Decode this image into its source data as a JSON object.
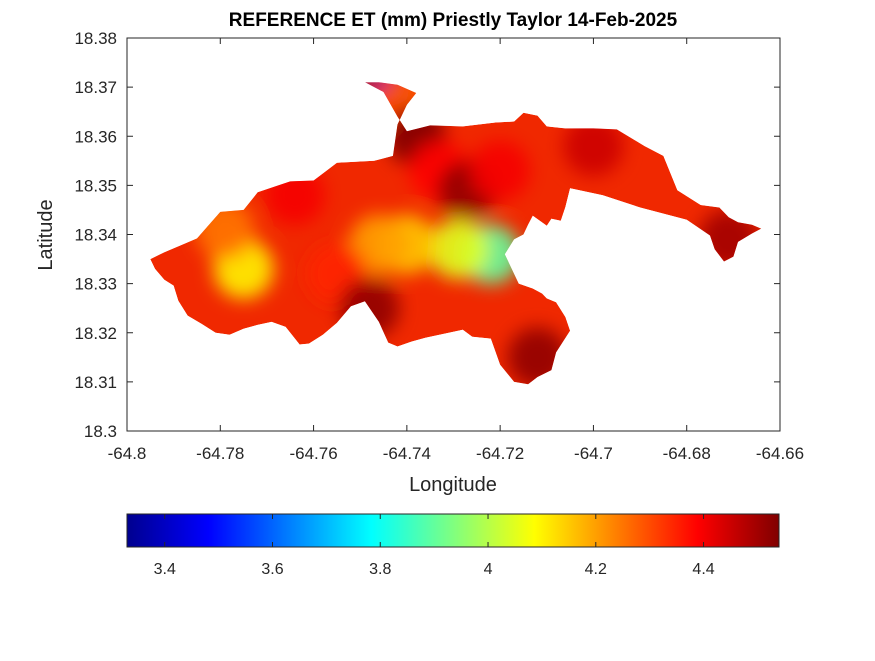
{
  "chart_data": {
    "type": "heatmap",
    "title": "REFERENCE ET (mm) Priestly Taylor 14-Feb-2025",
    "xlabel": "Longitude",
    "ylabel": "Latitude",
    "xlim": [
      -64.8,
      -64.66
    ],
    "ylim": [
      18.3,
      18.38
    ],
    "x_ticks": [
      -64.8,
      -64.78,
      -64.76,
      -64.74,
      -64.72,
      -64.7,
      -64.68,
      -64.66
    ],
    "x_tick_labels": [
      "-64.8",
      "-64.78",
      "-64.76",
      "-64.74",
      "-64.72",
      "-64.7",
      "-64.68",
      "-64.66"
    ],
    "y_ticks": [
      18.3,
      18.31,
      18.32,
      18.33,
      18.34,
      18.35,
      18.36,
      18.37,
      18.38
    ],
    "y_tick_labels": [
      "18.3",
      "18.31",
      "18.32",
      "18.33",
      "18.34",
      "18.35",
      "18.36",
      "18.37",
      "18.38"
    ],
    "grid": false,
    "colormap": "jet",
    "colorbar": {
      "orientation": "horizontal",
      "placement": "bottom",
      "clim": [
        3.33,
        4.54
      ],
      "ticks": [
        3.4,
        3.6,
        3.8,
        4.0,
        4.2,
        4.4
      ],
      "tick_labels": [
        "3.4",
        "3.6",
        "3.8",
        "4",
        "4.2",
        "4.4"
      ]
    },
    "region_outline": [
      [
        -64.792,
        18.3364
      ],
      [
        -64.785,
        18.3392
      ],
      [
        -64.78,
        18.3446
      ],
      [
        -64.775,
        18.345
      ],
      [
        -64.772,
        18.3486
      ],
      [
        -64.765,
        18.3508
      ],
      [
        -64.76,
        18.351
      ],
      [
        -64.755,
        18.3546
      ],
      [
        -64.747,
        18.355
      ],
      [
        -64.743,
        18.356
      ],
      [
        -64.742,
        18.3624
      ],
      [
        -64.74,
        18.3664
      ],
      [
        -64.738,
        18.3688
      ],
      [
        -64.742,
        18.3705
      ],
      [
        -64.746,
        18.371
      ],
      [
        -64.749,
        18.371
      ],
      [
        -64.745,
        18.369
      ],
      [
        -64.742,
        18.364
      ],
      [
        -64.74,
        18.361
      ],
      [
        -64.735,
        18.3622
      ],
      [
        -64.728,
        18.362
      ],
      [
        -64.721,
        18.3628
      ],
      [
        -64.717,
        18.363
      ],
      [
        -64.715,
        18.3648
      ],
      [
        -64.712,
        18.3642
      ],
      [
        -64.71,
        18.362
      ],
      [
        -64.706,
        18.3616
      ],
      [
        -64.7,
        18.3616
      ],
      [
        -64.695,
        18.3614
      ],
      [
        -64.689,
        18.358
      ],
      [
        -64.685,
        18.356
      ],
      [
        -64.682,
        18.349
      ],
      [
        -64.677,
        18.346
      ],
      [
        -64.673,
        18.3455
      ],
      [
        -64.671,
        18.3435
      ],
      [
        -64.669,
        18.3425
      ],
      [
        -64.666,
        18.342
      ],
      [
        -64.664,
        18.3412
      ],
      [
        -64.666,
        18.3402
      ],
      [
        -64.669,
        18.3385
      ],
      [
        -64.67,
        18.3355
      ],
      [
        -64.672,
        18.3345
      ],
      [
        -64.674,
        18.337
      ],
      [
        -64.675,
        18.3398
      ],
      [
        -64.68,
        18.343
      ],
      [
        -64.69,
        18.3455
      ],
      [
        -64.698,
        18.348
      ],
      [
        -64.705,
        18.3494
      ],
      [
        -64.706,
        18.3456
      ],
      [
        -64.707,
        18.3428
      ],
      [
        -64.709,
        18.3432
      ],
      [
        -64.71,
        18.3418
      ],
      [
        -64.713,
        18.3438
      ],
      [
        -64.714,
        18.342
      ],
      [
        -64.715,
        18.34
      ],
      [
        -64.717,
        18.339
      ],
      [
        -64.719,
        18.336
      ],
      [
        -64.717,
        18.332
      ],
      [
        -64.716,
        18.33
      ],
      [
        -64.713,
        18.329
      ],
      [
        -64.711,
        18.328
      ],
      [
        -64.71,
        18.327
      ],
      [
        -64.708,
        18.3262
      ],
      [
        -64.706,
        18.3232
      ],
      [
        -64.705,
        18.3204
      ],
      [
        -64.708,
        18.316
      ],
      [
        -64.709,
        18.3124
      ],
      [
        -64.712,
        18.311
      ],
      [
        -64.714,
        18.3095
      ],
      [
        -64.717,
        18.31
      ],
      [
        -64.72,
        18.3135
      ],
      [
        -64.722,
        18.3188
      ],
      [
        -64.726,
        18.3192
      ],
      [
        -64.728,
        18.3206
      ],
      [
        -64.73,
        18.3202
      ],
      [
        -64.733,
        18.3196
      ],
      [
        -64.736,
        18.319
      ],
      [
        -64.739,
        18.3182
      ],
      [
        -64.742,
        18.3172
      ],
      [
        -64.744,
        18.318
      ],
      [
        -64.746,
        18.3222
      ],
      [
        -64.749,
        18.3264
      ],
      [
        -64.752,
        18.3254
      ],
      [
        -64.755,
        18.322
      ],
      [
        -64.758,
        18.3196
      ],
      [
        -64.761,
        18.3178
      ],
      [
        -64.763,
        18.3176
      ],
      [
        -64.766,
        18.3212
      ],
      [
        -64.769,
        18.3222
      ],
      [
        -64.772,
        18.3216
      ],
      [
        -64.775,
        18.3208
      ],
      [
        -64.778,
        18.3196
      ],
      [
        -64.781,
        18.32
      ],
      [
        -64.784,
        18.3218
      ],
      [
        -64.787,
        18.3235
      ],
      [
        -64.789,
        18.3265
      ],
      [
        -64.79,
        18.3296
      ],
      [
        -64.792,
        18.3308
      ],
      [
        -64.794,
        18.333
      ],
      [
        -64.795,
        18.335
      ]
    ],
    "value_field": [
      {
        "lon": -64.748,
        "lat": 18.3708,
        "value": 3.33
      },
      {
        "lon": -64.745,
        "lat": 18.3705,
        "value": 3.5
      },
      {
        "lon": -64.742,
        "lat": 18.3698,
        "value": 3.7
      },
      {
        "lon": -64.741,
        "lat": 18.3685,
        "value": 3.95
      },
      {
        "lon": -64.738,
        "lat": 18.3688,
        "value": 4.1
      },
      {
        "lon": -64.741,
        "lat": 18.366,
        "value": 4.3
      },
      {
        "lon": -64.738,
        "lat": 18.36,
        "value": 4.54
      },
      {
        "lon": -64.733,
        "lat": 18.353,
        "value": 4.38
      },
      {
        "lon": -64.727,
        "lat": 18.349,
        "value": 4.52
      },
      {
        "lon": -64.72,
        "lat": 18.353,
        "value": 4.4
      },
      {
        "lon": -64.722,
        "lat": 18.336,
        "value": 3.9
      },
      {
        "lon": -64.729,
        "lat": 18.337,
        "value": 4.05
      },
      {
        "lon": -64.74,
        "lat": 18.338,
        "value": 4.15
      },
      {
        "lon": -64.746,
        "lat": 18.338,
        "value": 4.2
      },
      {
        "lon": -64.755,
        "lat": 18.332,
        "value": 4.35
      },
      {
        "lon": -64.775,
        "lat": 18.333,
        "value": 4.1
      },
      {
        "lon": -64.779,
        "lat": 18.341,
        "value": 4.25
      },
      {
        "lon": -64.764,
        "lat": 18.348,
        "value": 4.4
      },
      {
        "lon": -64.748,
        "lat": 18.325,
        "value": 4.52
      },
      {
        "lon": -64.712,
        "lat": 18.315,
        "value": 4.52
      },
      {
        "lon": -64.671,
        "lat": 18.339,
        "value": 4.5
      },
      {
        "lon": -64.7,
        "lat": 18.358,
        "value": 4.45
      }
    ]
  }
}
